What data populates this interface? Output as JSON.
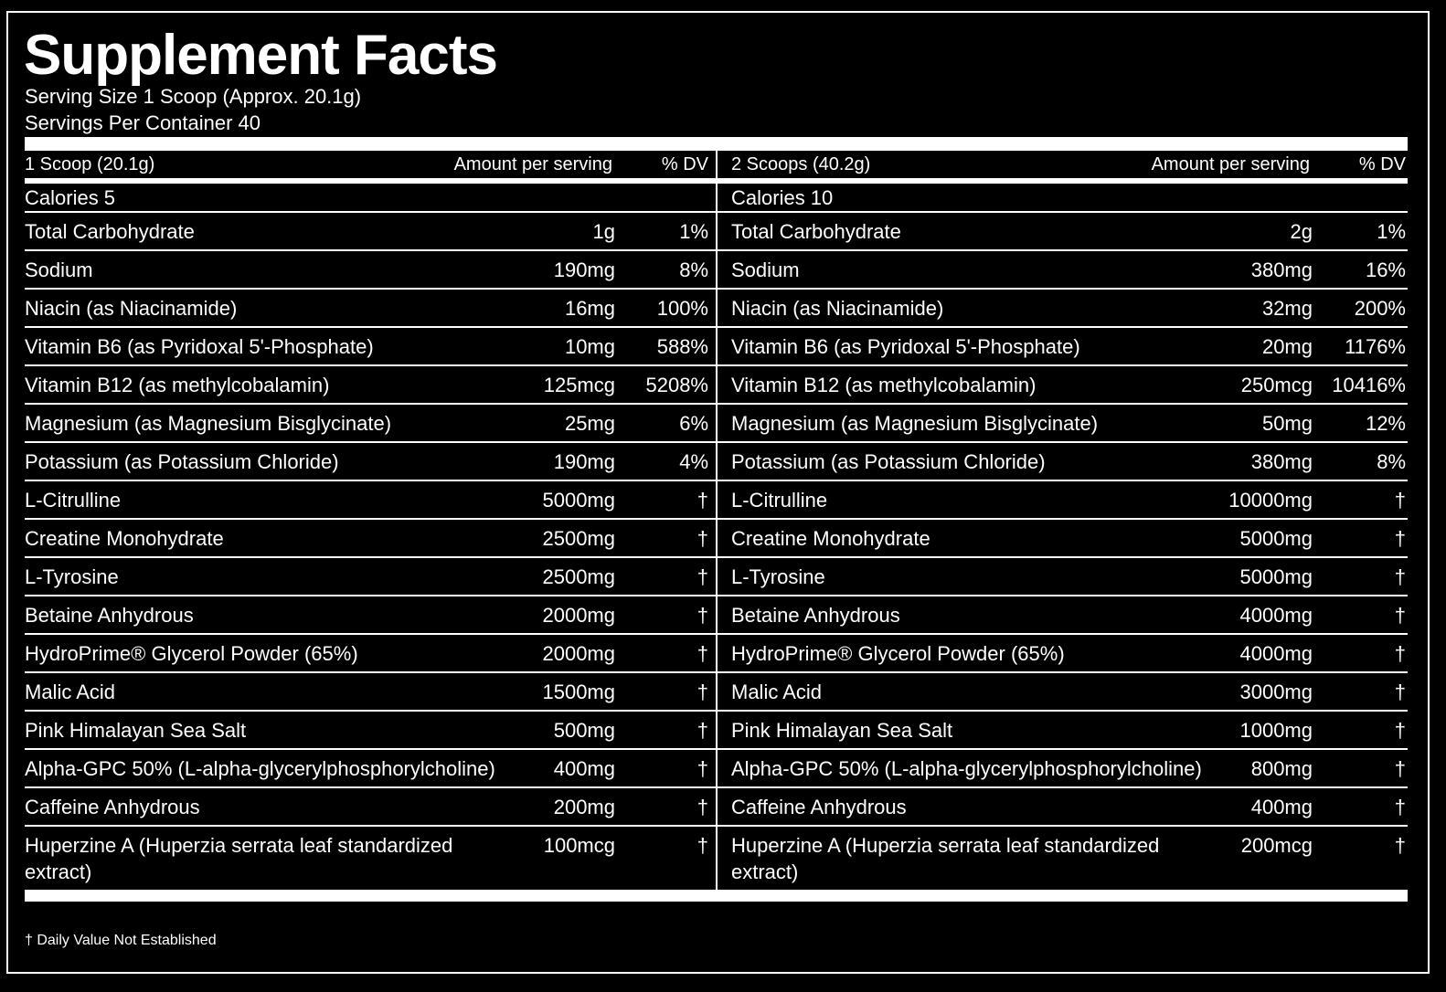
{
  "title": "Supplement Facts",
  "serving_size": "Serving Size 1 Scoop (Approx. 20.1g)",
  "servings_per_container": "Servings Per Container 40",
  "columns": [
    {
      "serving": "1 Scoop (20.1g)",
      "amount_header": "Amount per serving",
      "dv_header": "% DV",
      "calories": "Calories 5"
    },
    {
      "serving": "2 Scoops (40.2g)",
      "amount_header": "Amount per serving",
      "dv_header": "% DV",
      "calories": "Calories 10"
    }
  ],
  "rows": [
    {
      "name": "Total Carbohydrate",
      "a1": "1g",
      "d1": "1%",
      "a2": "2g",
      "d2": "1%"
    },
    {
      "name": "Sodium",
      "a1": "190mg",
      "d1": "8%",
      "a2": "380mg",
      "d2": "16%"
    },
    {
      "name": "Niacin (as Niacinamide)",
      "a1": "16mg",
      "d1": "100%",
      "a2": "32mg",
      "d2": "200%"
    },
    {
      "name": "Vitamin B6 (as Pyridoxal 5'-Phosphate)",
      "a1": "10mg",
      "d1": "588%",
      "a2": "20mg",
      "d2": "1176%"
    },
    {
      "name": "Vitamin B12 (as methylcobalamin)",
      "a1": "125mcg",
      "d1": "5208%",
      "a2": "250mcg",
      "d2": "10416%"
    },
    {
      "name": "Magnesium (as Magnesium Bisglycinate)",
      "a1": "25mg",
      "d1": "6%",
      "a2": "50mg",
      "d2": "12%"
    },
    {
      "name": "Potassium (as Potassium Chloride)",
      "a1": "190mg",
      "d1": "4%",
      "a2": "380mg",
      "d2": "8%"
    },
    {
      "name": "L-Citrulline",
      "a1": "5000mg",
      "d1": "†",
      "a2": "10000mg",
      "d2": "†"
    },
    {
      "name": "Creatine Monohydrate",
      "a1": "2500mg",
      "d1": "†",
      "a2": "5000mg",
      "d2": "†"
    },
    {
      "name": "L-Tyrosine",
      "a1": "2500mg",
      "d1": "†",
      "a2": "5000mg",
      "d2": "†"
    },
    {
      "name": "Betaine Anhydrous",
      "a1": "2000mg",
      "d1": "†",
      "a2": "4000mg",
      "d2": "†"
    },
    {
      "name": "HydroPrime® Glycerol Powder (65%)",
      "a1": "2000mg",
      "d1": "†",
      "a2": "4000mg",
      "d2": "†"
    },
    {
      "name": "Malic Acid",
      "a1": "1500mg",
      "d1": "†",
      "a2": "3000mg",
      "d2": "†"
    },
    {
      "name": "Pink Himalayan Sea Salt",
      "a1": "500mg",
      "d1": "†",
      "a2": "1000mg",
      "d2": "†"
    },
    {
      "name": "Alpha-GPC 50% (L-alpha-glycerylphosphorylcholine)",
      "a1": "400mg",
      "d1": "†",
      "a2": "800mg",
      "d2": "†"
    },
    {
      "name": "Caffeine Anhydrous",
      "a1": "200mg",
      "d1": "†",
      "a2": "400mg",
      "d2": "†"
    },
    {
      "name": "Huperzine A (Huperzia serrata leaf standardized extract)",
      "a1": "100mcg",
      "d1": "†",
      "a2": "200mcg",
      "d2": "†"
    }
  ],
  "footnote": "† Daily Value Not Established"
}
